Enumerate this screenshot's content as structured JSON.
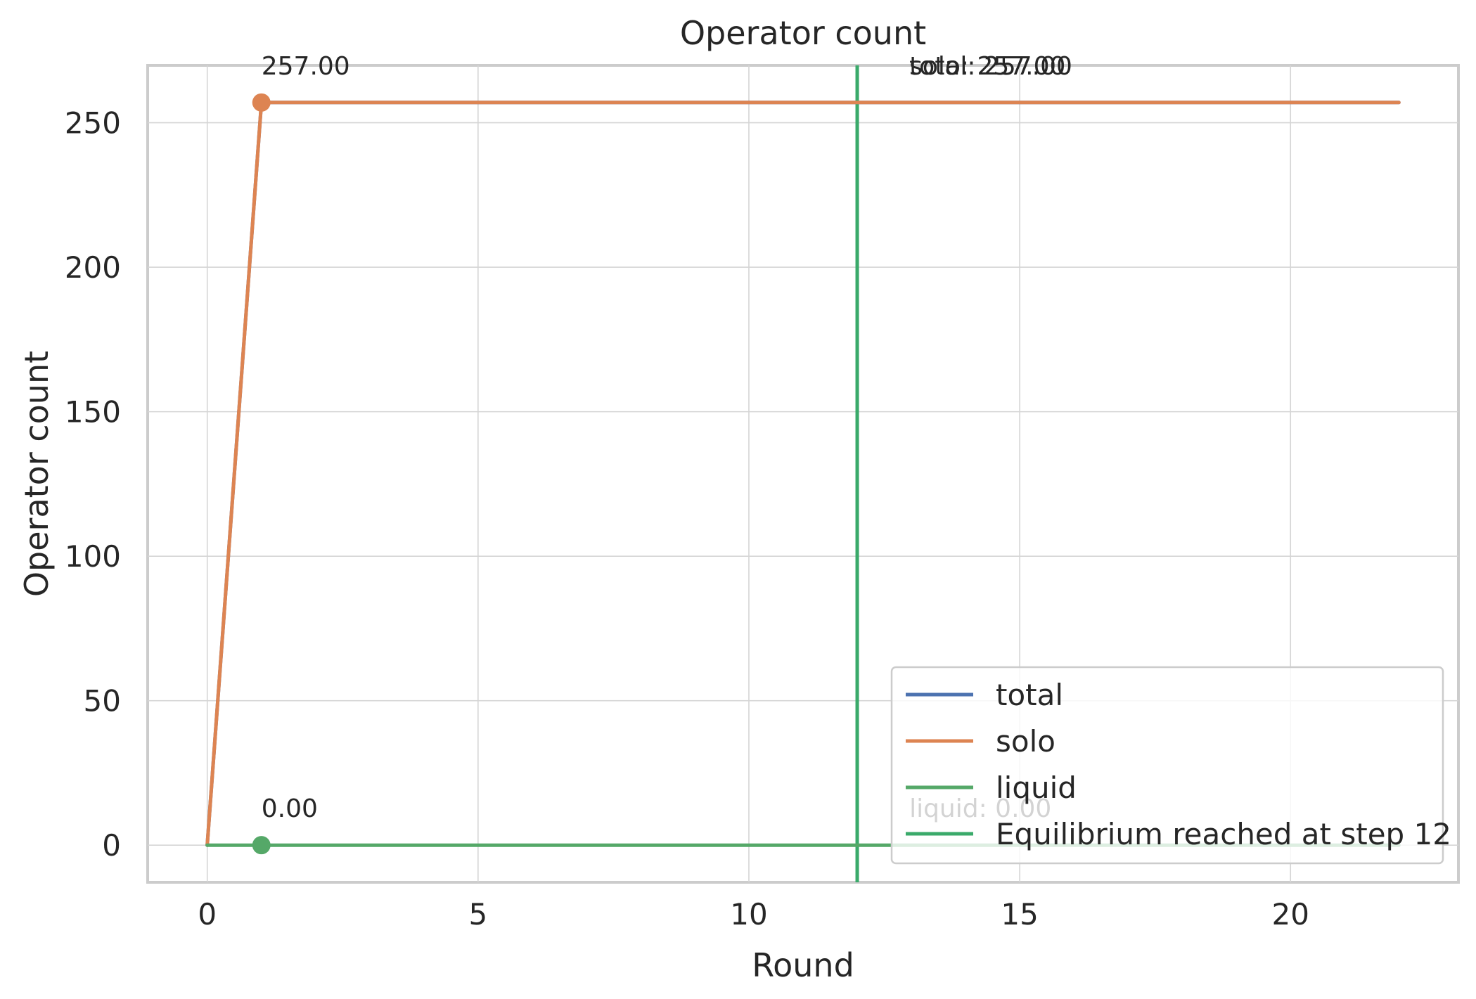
{
  "chart_data": {
    "type": "line",
    "title": "Operator count",
    "xlabel": "Round",
    "ylabel": "Operator count",
    "xlim": [
      -1.1,
      23.1
    ],
    "ylim": [
      -12.85,
      269.85
    ],
    "x_ticks": [
      0,
      5,
      10,
      15,
      20
    ],
    "y_ticks": [
      0,
      50,
      100,
      150,
      200,
      250
    ],
    "grid": true,
    "legend_position": "lower right",
    "series": [
      {
        "name": "total",
        "color": "#4c72b0",
        "x": [
          0,
          1,
          2,
          3,
          4,
          5,
          6,
          7,
          8,
          9,
          10,
          11,
          12,
          13,
          14,
          15,
          16,
          17,
          18,
          19,
          20,
          21,
          22
        ],
        "values": [
          0,
          257,
          257,
          257,
          257,
          257,
          257,
          257,
          257,
          257,
          257,
          257,
          257,
          257,
          257,
          257,
          257,
          257,
          257,
          257,
          257,
          257,
          257
        ]
      },
      {
        "name": "solo",
        "color": "#dd8452",
        "x": [
          0,
          1,
          2,
          3,
          4,
          5,
          6,
          7,
          8,
          9,
          10,
          11,
          12,
          13,
          14,
          15,
          16,
          17,
          18,
          19,
          20,
          21,
          22
        ],
        "values": [
          0,
          257,
          257,
          257,
          257,
          257,
          257,
          257,
          257,
          257,
          257,
          257,
          257,
          257,
          257,
          257,
          257,
          257,
          257,
          257,
          257,
          257,
          257
        ]
      },
      {
        "name": "liquid",
        "color": "#55a868",
        "x": [
          0,
          1,
          2,
          3,
          4,
          5,
          6,
          7,
          8,
          9,
          10,
          11,
          12,
          13,
          14,
          15,
          16,
          17,
          18,
          19,
          20,
          21,
          22
        ],
        "values": [
          0,
          0,
          0,
          0,
          0,
          0,
          0,
          0,
          0,
          0,
          0,
          0,
          0,
          0,
          0,
          0,
          0,
          0,
          0,
          0,
          0,
          0,
          0
        ]
      }
    ],
    "markers": [
      {
        "x": 1,
        "y": 257,
        "label": "257.00",
        "color": "#dd8452"
      },
      {
        "x": 1,
        "y": 0,
        "label": "0.00",
        "color": "#55a868"
      }
    ],
    "end_labels": [
      {
        "x": 14,
        "y": 257,
        "text": "total: 257.00"
      },
      {
        "x": 14,
        "y": 257,
        "text": "solo: 257.00"
      },
      {
        "x": 14,
        "y": 0,
        "text": "liquid: 0.00"
      }
    ],
    "vline": {
      "x": 12,
      "color": "#3aaa6a",
      "label": "Equilibrium reached at step 12"
    }
  }
}
